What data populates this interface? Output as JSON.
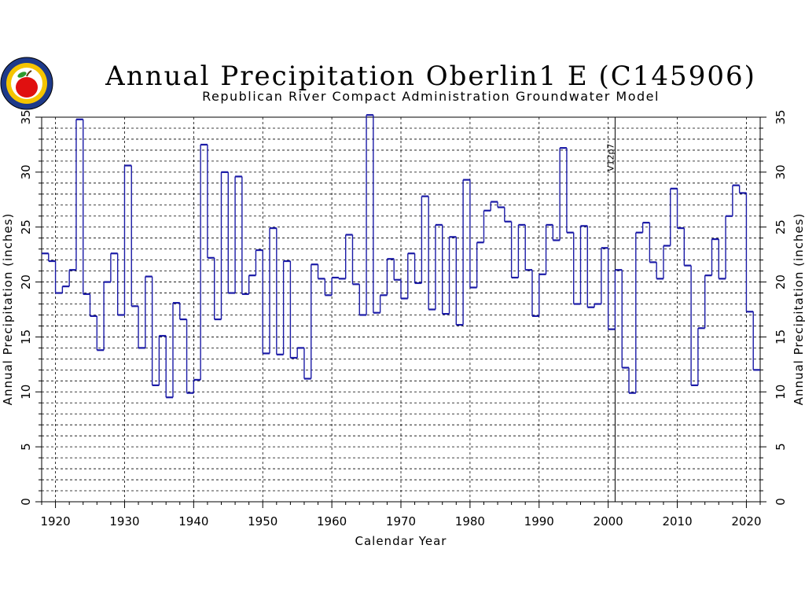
{
  "chart_data": {
    "type": "step",
    "title": "Annual Precipitation Oberlin1 E (C145906)",
    "subtitle": "Republican River Compact Administration Groundwater Model",
    "xlabel": "Calendar Year",
    "ylabel": "Annual Precipitation (inches)",
    "xlim": [
      1918,
      2022
    ],
    "ylim": [
      0,
      35
    ],
    "x_ticks": [
      1920,
      1930,
      1940,
      1950,
      1960,
      1970,
      1980,
      1990,
      2000,
      2010,
      2020
    ],
    "y_ticks": [
      0,
      5,
      10,
      15,
      20,
      25,
      30,
      35
    ],
    "grid": true,
    "line_color": "#1a1aa6",
    "annotation": {
      "label": "V12p7",
      "x": 2001
    },
    "years": [
      1918,
      1919,
      1920,
      1921,
      1922,
      1923,
      1924,
      1925,
      1926,
      1927,
      1928,
      1929,
      1930,
      1931,
      1932,
      1933,
      1934,
      1935,
      1936,
      1937,
      1938,
      1939,
      1940,
      1941,
      1942,
      1943,
      1944,
      1945,
      1946,
      1947,
      1948,
      1949,
      1950,
      1951,
      1952,
      1953,
      1954,
      1955,
      1956,
      1957,
      1958,
      1959,
      1960,
      1961,
      1962,
      1963,
      1964,
      1965,
      1966,
      1967,
      1968,
      1969,
      1970,
      1971,
      1972,
      1973,
      1974,
      1975,
      1976,
      1977,
      1978,
      1979,
      1980,
      1981,
      1982,
      1983,
      1984,
      1985,
      1986,
      1987,
      1988,
      1989,
      1990,
      1991,
      1992,
      1993,
      1994,
      1995,
      1996,
      1997,
      1998,
      1999,
      2000,
      2001,
      2002,
      2003,
      2004,
      2005,
      2006,
      2007,
      2008,
      2009,
      2010,
      2011,
      2012,
      2013,
      2014,
      2015,
      2016,
      2017,
      2018,
      2019,
      2020,
      2021
    ],
    "values": [
      22.6,
      21.9,
      19.0,
      19.6,
      21.1,
      34.8,
      18.9,
      16.9,
      13.8,
      20.0,
      22.6,
      17.0,
      30.6,
      17.8,
      14.0,
      20.5,
      10.6,
      15.1,
      9.5,
      18.1,
      16.6,
      9.9,
      11.1,
      32.5,
      22.2,
      16.6,
      30.0,
      19.0,
      29.6,
      18.9,
      20.6,
      22.9,
      13.5,
      24.9,
      13.4,
      21.9,
      13.1,
      14.0,
      11.2,
      21.6,
      20.3,
      18.8,
      20.4,
      20.3,
      24.3,
      19.8,
      17.0,
      35.2,
      17.2,
      18.8,
      22.1,
      20.2,
      18.5,
      22.6,
      19.9,
      27.8,
      17.5,
      25.2,
      17.1,
      24.1,
      16.1,
      29.3,
      19.5,
      23.6,
      26.5,
      27.3,
      26.8,
      25.5,
      20.4,
      25.2,
      21.1,
      16.9,
      20.7,
      25.2,
      23.8,
      32.2,
      24.5,
      18.0,
      25.1,
      17.7,
      18.0,
      23.1,
      15.7,
      21.1,
      12.2,
      9.9,
      24.5,
      25.4,
      21.8,
      20.3,
      23.3,
      28.5,
      24.9,
      21.5,
      10.6,
      15.8,
      20.6,
      23.9,
      20.3,
      26.0,
      28.8,
      28.1,
      17.3,
      12.0
    ]
  }
}
